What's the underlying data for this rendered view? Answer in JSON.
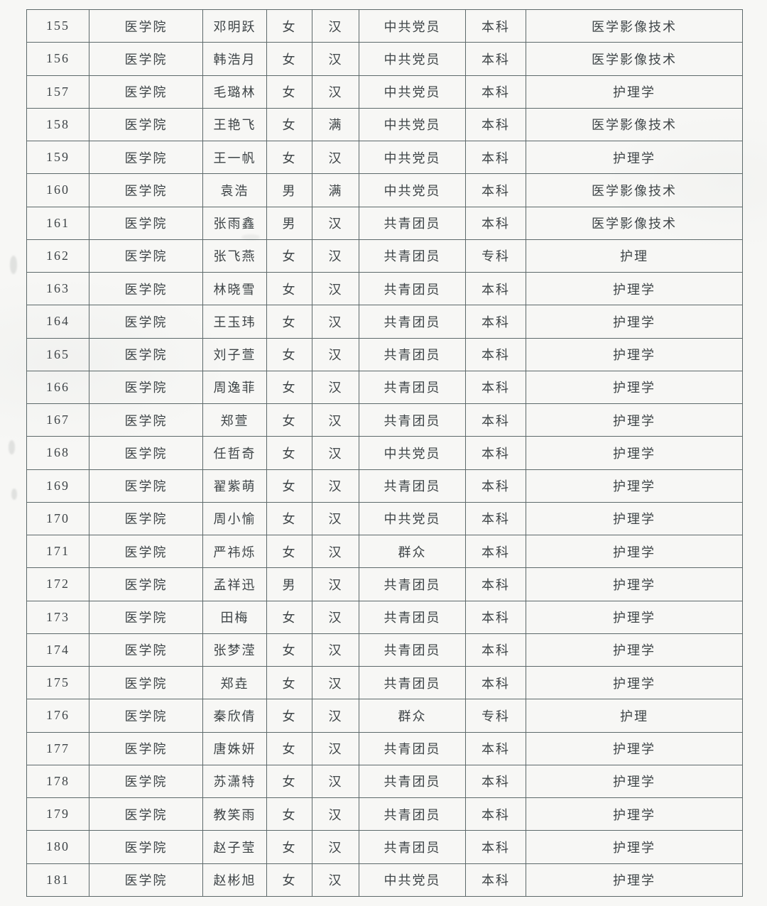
{
  "document": {
    "type_note": "scanned student roster table, rows 155-181, no visible header row",
    "colors": {
      "paper": "#f7f7f5",
      "border": "#5d696a",
      "text": "#3e4447"
    }
  },
  "table": {
    "column_semantics": [
      "serial-number",
      "college",
      "student-name",
      "gender",
      "ethnicity",
      "political-status",
      "education-level",
      "major"
    ],
    "rows": [
      [
        "155",
        "医学院",
        "邓明跃",
        "女",
        "汉",
        "中共党员",
        "本科",
        "医学影像技术"
      ],
      [
        "156",
        "医学院",
        "韩浩月",
        "女",
        "汉",
        "中共党员",
        "本科",
        "医学影像技术"
      ],
      [
        "157",
        "医学院",
        "毛璐林",
        "女",
        "汉",
        "中共党员",
        "本科",
        "护理学"
      ],
      [
        "158",
        "医学院",
        "王艳飞",
        "女",
        "满",
        "中共党员",
        "本科",
        "医学影像技术"
      ],
      [
        "159",
        "医学院",
        "王一帆",
        "女",
        "汉",
        "中共党员",
        "本科",
        "护理学"
      ],
      [
        "160",
        "医学院",
        "袁浩",
        "男",
        "满",
        "中共党员",
        "本科",
        "医学影像技术"
      ],
      [
        "161",
        "医学院",
        "张雨鑫",
        "男",
        "汉",
        "共青团员",
        "本科",
        "医学影像技术"
      ],
      [
        "162",
        "医学院",
        "张飞燕",
        "女",
        "汉",
        "共青团员",
        "专科",
        "护理"
      ],
      [
        "163",
        "医学院",
        "林晓雪",
        "女",
        "汉",
        "共青团员",
        "本科",
        "护理学"
      ],
      [
        "164",
        "医学院",
        "王玉玮",
        "女",
        "汉",
        "共青团员",
        "本科",
        "护理学"
      ],
      [
        "165",
        "医学院",
        "刘子萱",
        "女",
        "汉",
        "共青团员",
        "本科",
        "护理学"
      ],
      [
        "166",
        "医学院",
        "周逸菲",
        "女",
        "汉",
        "共青团员",
        "本科",
        "护理学"
      ],
      [
        "167",
        "医学院",
        "郑萱",
        "女",
        "汉",
        "共青团员",
        "本科",
        "护理学"
      ],
      [
        "168",
        "医学院",
        "任哲奇",
        "女",
        "汉",
        "中共党员",
        "本科",
        "护理学"
      ],
      [
        "169",
        "医学院",
        "翟紫萌",
        "女",
        "汉",
        "共青团员",
        "本科",
        "护理学"
      ],
      [
        "170",
        "医学院",
        "周小愉",
        "女",
        "汉",
        "中共党员",
        "本科",
        "护理学"
      ],
      [
        "171",
        "医学院",
        "严祎烁",
        "女",
        "汉",
        "群众",
        "本科",
        "护理学"
      ],
      [
        "172",
        "医学院",
        "孟祥迅",
        "男",
        "汉",
        "共青团员",
        "本科",
        "护理学"
      ],
      [
        "173",
        "医学院",
        "田梅",
        "女",
        "汉",
        "共青团员",
        "本科",
        "护理学"
      ],
      [
        "174",
        "医学院",
        "张梦滢",
        "女",
        "汉",
        "共青团员",
        "本科",
        "护理学"
      ],
      [
        "175",
        "医学院",
        "郑垚",
        "女",
        "汉",
        "共青团员",
        "本科",
        "护理学"
      ],
      [
        "176",
        "医学院",
        "秦欣倩",
        "女",
        "汉",
        "群众",
        "专科",
        "护理"
      ],
      [
        "177",
        "医学院",
        "唐姝妍",
        "女",
        "汉",
        "共青团员",
        "本科",
        "护理学"
      ],
      [
        "178",
        "医学院",
        "苏潇特",
        "女",
        "汉",
        "共青团员",
        "本科",
        "护理学"
      ],
      [
        "179",
        "医学院",
        "教笑雨",
        "女",
        "汉",
        "共青团员",
        "本科",
        "护理学"
      ],
      [
        "180",
        "医学院",
        "赵子莹",
        "女",
        "汉",
        "共青团员",
        "本科",
        "护理学"
      ],
      [
        "181",
        "医学院",
        "赵彬旭",
        "女",
        "汉",
        "中共党员",
        "本科",
        "护理学"
      ]
    ]
  }
}
